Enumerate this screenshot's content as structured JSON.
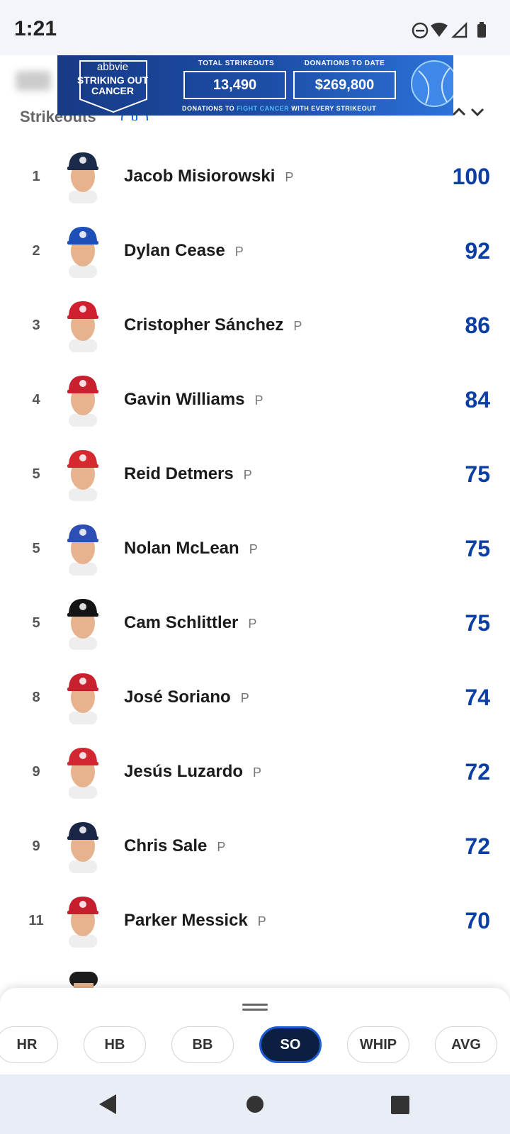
{
  "status_bar": {
    "time": "1:21"
  },
  "ad": {
    "brand": "abbvie",
    "headline": [
      "STRIKING OUT",
      "CANCER"
    ],
    "total_label": "TOTAL STRIKEOUTS",
    "total_value": "13,490",
    "donations_label": "DONATIONS TO DATE",
    "donations_value": "$269,800",
    "footer": [
      "DONATIONS TO",
      "FIGHT CANCER",
      "WITH EVERY STRIKEOUT"
    ]
  },
  "leaderboard": {
    "title": "Strikeouts",
    "rows": [
      {
        "rank": 1,
        "name": "Jacob Misiorowski",
        "position": "P",
        "value": 100
      },
      {
        "rank": 2,
        "name": "Dylan Cease",
        "position": "P",
        "value": 92
      },
      {
        "rank": 3,
        "name": "Cristopher Sánchez",
        "position": "P",
        "value": 86
      },
      {
        "rank": 4,
        "name": "Gavin Williams",
        "position": "P",
        "value": 84
      },
      {
        "rank": 5,
        "name": "Reid Detmers",
        "position": "P",
        "value": 75
      },
      {
        "rank": 5,
        "name": "Nolan McLean",
        "position": "P",
        "value": 75
      },
      {
        "rank": 5,
        "name": "Cam Schlittler",
        "position": "P",
        "value": 75
      },
      {
        "rank": 8,
        "name": "José Soriano",
        "position": "P",
        "value": 74
      },
      {
        "rank": 9,
        "name": "Jesús Luzardo",
        "position": "P",
        "value": 72
      },
      {
        "rank": 9,
        "name": "Chris Sale",
        "position": "P",
        "value": 72
      },
      {
        "rank": 11,
        "name": "Parker Messick",
        "position": "P",
        "value": 70
      }
    ]
  },
  "stat_tabs": {
    "tabs": [
      "HR",
      "HB",
      "BB",
      "SO",
      "WHIP",
      "AVG"
    ],
    "selected_index": 3
  }
}
